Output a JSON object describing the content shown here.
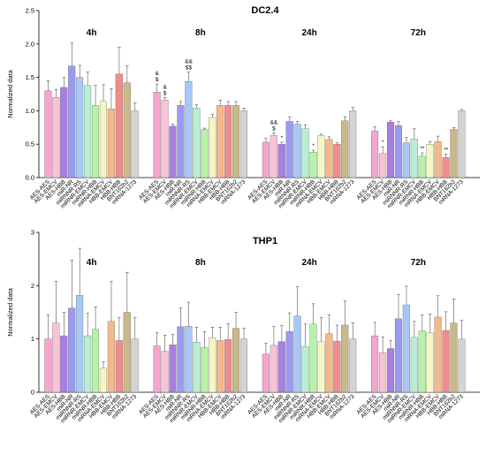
{
  "categories": [
    "AES-AES",
    "AES-EMCV",
    "AES-HBB",
    "miR-NR",
    "miRNNR-RS",
    "miRNR-EMCV",
    "miRNR-HBB",
    "mRNA-EMCV",
    "HBB-EMCV",
    "HBB-HBB",
    "BNT162b2",
    "mRNA-1273"
  ],
  "colors": [
    "#f4a6cf",
    "#f9c3d6",
    "#a87ee0",
    "#9a9bf0",
    "#a8c8f4",
    "#b8efd2",
    "#b8f2a8",
    "#f4f7c4",
    "#f4b98a",
    "#f08c8c",
    "#c8b88a",
    "#d4d4d4"
  ],
  "chart_data": [
    {
      "type": "bar",
      "title": "DC2.4",
      "ylabel": "Normalized data",
      "ylim": [
        0,
        2.5
      ],
      "yticks": [
        "0.0",
        "0.5",
        "1.0",
        "1.5",
        "2.0",
        "2.5"
      ],
      "series": [
        {
          "timepoint": "4h",
          "values": [
            1.3,
            1.2,
            1.35,
            1.67,
            1.5,
            1.38,
            1.08,
            1.14,
            1.03,
            1.55,
            1.42,
            1.0
          ],
          "errors": [
            0.15,
            0.12,
            0.15,
            0.35,
            0.18,
            0.2,
            0.3,
            0.25,
            0.3,
            0.4,
            0.25,
            0.12
          ],
          "marks": [
            "",
            "",
            "",
            "",
            "",
            "",
            "",
            "",
            "",
            "",
            "",
            ""
          ]
        },
        {
          "timepoint": "8h",
          "values": [
            1.28,
            1.16,
            0.77,
            1.08,
            1.44,
            1.04,
            0.72,
            0.9,
            1.08,
            1.08,
            1.08,
            1.0
          ],
          "errors": [
            0.12,
            0.04,
            0.03,
            0.06,
            0.14,
            0.05,
            0.02,
            0.05,
            0.08,
            0.06,
            0.06,
            0.04
          ],
          "marks": [
            "&\n$",
            "&\n$",
            "",
            "",
            "&&\n$$",
            "",
            "",
            "",
            "",
            "",
            "",
            ""
          ]
        },
        {
          "timepoint": "24h",
          "values": [
            0.53,
            0.63,
            0.5,
            0.84,
            0.8,
            0.73,
            0.38,
            0.63,
            0.57,
            0.5,
            0.85,
            1.0
          ],
          "errors": [
            0.06,
            0.04,
            0.03,
            0.07,
            0.04,
            0.06,
            0.03,
            0.02,
            0.04,
            0.02,
            0.06,
            0.05
          ],
          "marks": [
            "",
            "&&\n$",
            "*",
            "",
            "",
            "",
            "*",
            "",
            "",
            "",
            "",
            ""
          ]
        },
        {
          "timepoint": "72h",
          "values": [
            0.7,
            0.36,
            0.83,
            0.78,
            0.52,
            0.58,
            0.32,
            0.5,
            0.54,
            0.3,
            0.72,
            1.0
          ],
          "errors": [
            0.06,
            0.1,
            0.02,
            0.06,
            0.08,
            0.15,
            0.05,
            0.04,
            0.08,
            0.05,
            0.03,
            0.02
          ],
          "marks": [
            "",
            "*",
            "",
            "",
            "",
            "",
            "**",
            "",
            "",
            "**",
            "",
            ""
          ]
        }
      ]
    },
    {
      "type": "bar",
      "title": "THP1",
      "ylabel": "Normalized data",
      "ylim": [
        0,
        3
      ],
      "yticks": [
        "0",
        "1",
        "2",
        "3"
      ],
      "series": [
        {
          "timepoint": "4h",
          "values": [
            1.0,
            1.3,
            1.06,
            1.58,
            1.82,
            1.06,
            1.18,
            0.45,
            1.33,
            0.97,
            1.5,
            1.0
          ],
          "errors": [
            0.45,
            0.78,
            0.44,
            0.9,
            0.88,
            0.42,
            0.42,
            0.12,
            0.75,
            0.43,
            0.75,
            0.4
          ]
        },
        {
          "timepoint": "8h",
          "values": [
            0.87,
            0.77,
            0.89,
            1.23,
            1.24,
            0.94,
            0.84,
            1.02,
            0.97,
            0.99,
            1.2,
            1.0
          ],
          "errors": [
            0.25,
            0.3,
            0.2,
            0.35,
            0.45,
            0.28,
            0.3,
            0.2,
            0.25,
            0.3,
            0.3,
            0.2
          ]
        },
        {
          "timepoint": "24h",
          "values": [
            0.72,
            0.88,
            0.95,
            1.14,
            1.43,
            0.86,
            1.28,
            0.95,
            1.1,
            0.96,
            1.26,
            1.0
          ],
          "errors": [
            0.2,
            0.35,
            0.3,
            0.35,
            0.55,
            0.42,
            0.38,
            0.45,
            0.35,
            0.3,
            0.45,
            0.3
          ]
        },
        {
          "timepoint": "72h",
          "values": [
            1.06,
            0.74,
            0.82,
            1.38,
            1.64,
            1.03,
            1.15,
            1.12,
            1.41,
            1.16,
            1.3,
            1.0
          ],
          "errors": [
            0.25,
            0.3,
            0.15,
            0.45,
            0.35,
            0.3,
            0.3,
            0.35,
            0.4,
            0.35,
            0.45,
            0.35
          ]
        }
      ]
    }
  ]
}
